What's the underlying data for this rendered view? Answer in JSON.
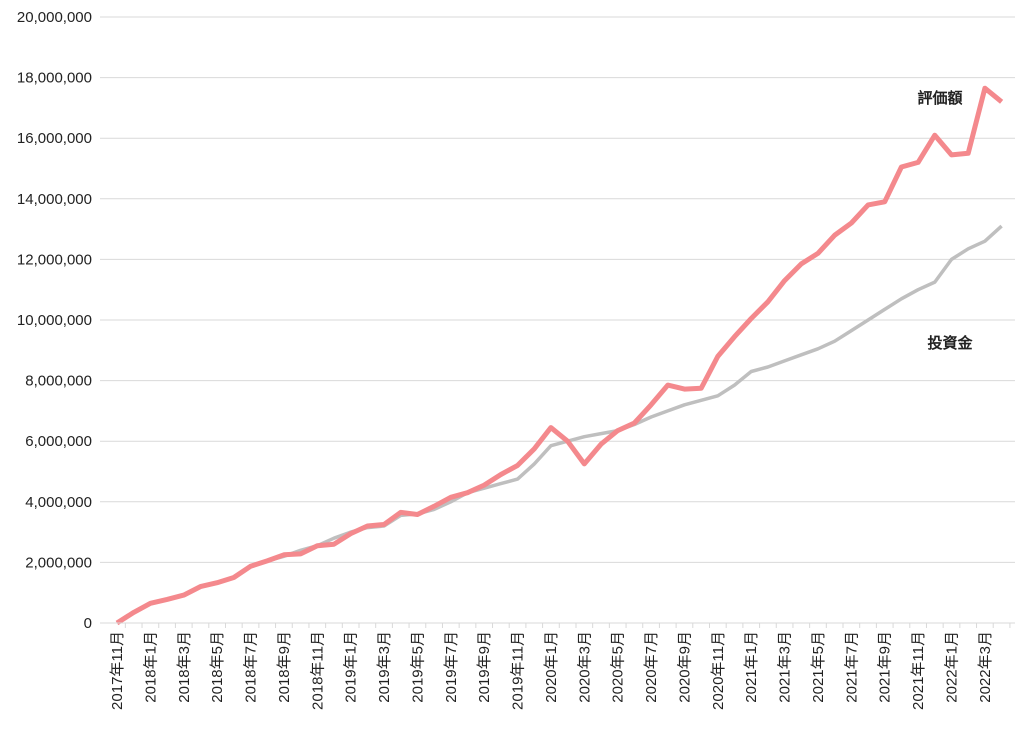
{
  "chart_data": {
    "type": "line",
    "categories": [
      "2017年11月",
      null,
      "2018年1月",
      null,
      "2018年3月",
      null,
      "2018年5月",
      null,
      "2018年7月",
      null,
      "2018年9月",
      null,
      "2018年11月",
      null,
      "2019年1月",
      null,
      "2019年3月",
      null,
      "2019年5月",
      null,
      "2019年7月",
      null,
      "2019年9月",
      null,
      "2019年11月",
      null,
      "2020年1月",
      null,
      "2020年3月",
      null,
      "2020年5月",
      null,
      "2020年7月",
      null,
      "2020年9月",
      null,
      "2020年11月",
      null,
      "2021年1月",
      null,
      "2021年3月",
      null,
      "2021年5月",
      null,
      "2021年7月",
      null,
      "2021年9月",
      null,
      "2021年11月",
      null,
      "2022年1月",
      null,
      "2022年3月",
      null
    ],
    "series": [
      {
        "name": "評価額",
        "color": "#f4898d",
        "values": [
          0,
          350000,
          650000,
          780000,
          920000,
          1200000,
          1330000,
          1500000,
          1870000,
          2050000,
          2250000,
          2280000,
          2550000,
          2600000,
          2950000,
          3200000,
          3250000,
          3650000,
          3580000,
          3850000,
          4150000,
          4300000,
          4550000,
          4900000,
          5200000,
          5750000,
          6450000,
          6000000,
          5250000,
          5900000,
          6350000,
          6600000,
          7200000,
          7850000,
          7720000,
          7750000,
          8800000,
          9450000,
          10050000,
          10600000,
          11300000,
          11850000,
          12200000,
          12800000,
          13200000,
          13800000,
          13900000,
          15050000,
          15200000,
          16100000,
          15450000,
          15500000,
          17650000,
          17200000
        ]
      },
      {
        "name": "投資金",
        "color": "#bfbfbf",
        "values": [
          0,
          350000,
          650000,
          780000,
          920000,
          1200000,
          1330000,
          1500000,
          1850000,
          2050000,
          2200000,
          2400000,
          2550000,
          2800000,
          3000000,
          3150000,
          3200000,
          3550000,
          3600000,
          3750000,
          4000000,
          4300000,
          4450000,
          4600000,
          4750000,
          5250000,
          5850000,
          6000000,
          6150000,
          6250000,
          6350000,
          6550000,
          6800000,
          7000000,
          7200000,
          7350000,
          7500000,
          7850000,
          8300000,
          8450000,
          8650000,
          8850000,
          9050000,
          9300000,
          9650000,
          10000000,
          10350000,
          10700000,
          11000000,
          11250000,
          12000000,
          12350000,
          12600000,
          13100000
        ]
      }
    ],
    "ylim": [
      0,
      20000000
    ],
    "yticks": [
      0,
      {
        "value": 2000000,
        "label": "2,000,000"
      },
      {
        "value": 4000000,
        "label": "4,000,000"
      },
      {
        "value": 6000000,
        "label": "6,000,000"
      },
      {
        "value": 8000000,
        "label": "8,000,000"
      },
      {
        "value": 10000000,
        "label": "10,000,000"
      },
      {
        "value": 12000000,
        "label": "12,000,000"
      },
      {
        "value": 14000000,
        "label": "14,000,000"
      },
      {
        "value": 16000000,
        "label": "16,000,000"
      },
      {
        "value": 18000000,
        "label": "18,000,000"
      },
      {
        "value": 20000000,
        "label": "20,000,000"
      }
    ],
    "grid": true
  }
}
